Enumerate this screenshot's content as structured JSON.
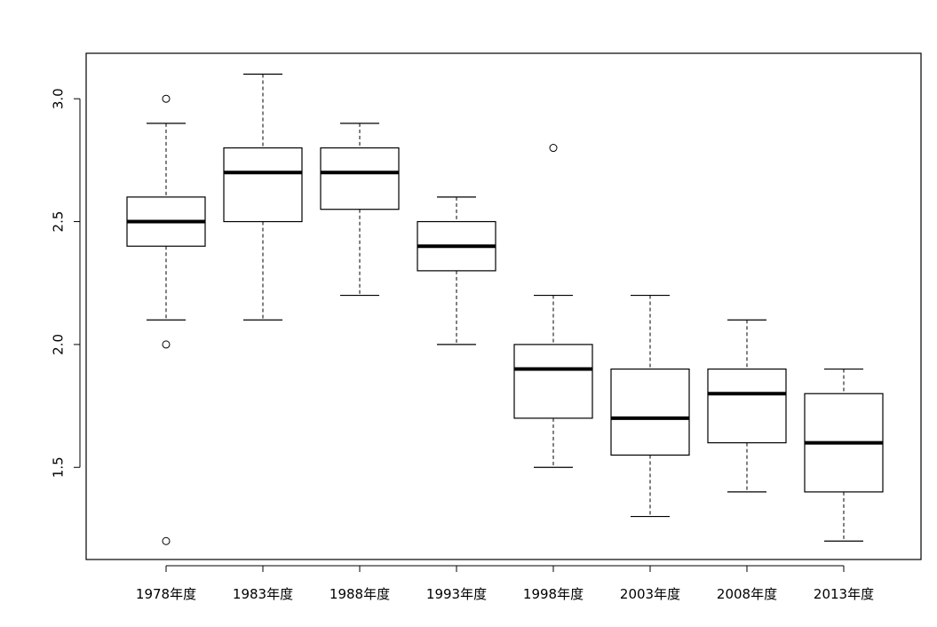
{
  "chart_data": {
    "type": "box",
    "categories": [
      "1978年度",
      "1983年度",
      "1988年度",
      "1993年度",
      "1998年度",
      "2003年度",
      "2008年度",
      "2013年度"
    ],
    "boxes": [
      {
        "whisker_low": 2.1,
        "q1": 2.4,
        "median": 2.5,
        "q3": 2.6,
        "whisker_high": 2.9,
        "outliers": [
          3.0,
          2.0,
          1.2
        ]
      },
      {
        "whisker_low": 2.1,
        "q1": 2.5,
        "median": 2.7,
        "q3": 2.8,
        "whisker_high": 3.1,
        "outliers": []
      },
      {
        "whisker_low": 2.2,
        "q1": 2.55,
        "median": 2.7,
        "q3": 2.8,
        "whisker_high": 2.9,
        "outliers": []
      },
      {
        "whisker_low": 2.0,
        "q1": 2.3,
        "median": 2.4,
        "q3": 2.5,
        "whisker_high": 2.6,
        "outliers": []
      },
      {
        "whisker_low": 1.5,
        "q1": 1.7,
        "median": 1.9,
        "q3": 2.0,
        "whisker_high": 2.2,
        "outliers": [
          2.8
        ]
      },
      {
        "whisker_low": 1.3,
        "q1": 1.55,
        "median": 1.7,
        "q3": 1.9,
        "whisker_high": 2.2,
        "outliers": []
      },
      {
        "whisker_low": 1.4,
        "q1": 1.6,
        "median": 1.8,
        "q3": 1.9,
        "whisker_high": 2.1,
        "outliers": []
      },
      {
        "whisker_low": 1.2,
        "q1": 1.4,
        "median": 1.6,
        "q3": 1.8,
        "whisker_high": 1.9,
        "outliers": []
      }
    ],
    "y_ticks": [
      "1.5",
      "2.0",
      "2.5",
      "3.0"
    ],
    "ylim": [
      1.125,
      3.185
    ],
    "title": "",
    "xlabel": "",
    "ylabel": "",
    "grid": false
  }
}
